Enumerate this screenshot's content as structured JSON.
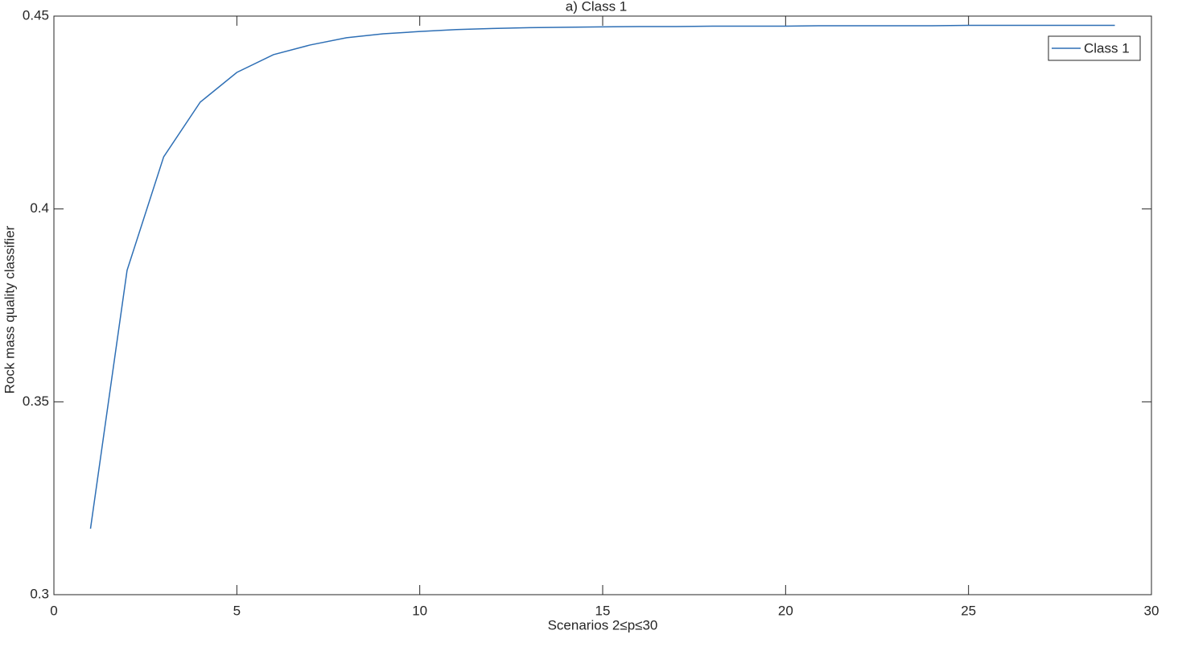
{
  "chart_data": {
    "type": "line",
    "title": "a) Class 1",
    "x_label": "Scenarios 2≤p≤30",
    "y_label": "Rock mass quality classifier",
    "x": [
      1,
      2,
      3,
      4,
      5,
      6,
      7,
      8,
      9,
      10,
      11,
      12,
      13,
      14,
      15,
      16,
      17,
      18,
      19,
      20,
      21,
      22,
      23,
      24,
      25,
      26,
      27,
      28,
      29
    ],
    "series": [
      {
        "name": "Class 1",
        "color": "#2e6fb5",
        "values": [
          0.3171,
          0.3841,
          0.4135,
          0.4277,
          0.4354,
          0.44,
          0.4425,
          0.4444,
          0.4454,
          0.446,
          0.4465,
          0.4468,
          0.447,
          0.4471,
          0.4472,
          0.4473,
          0.4473,
          0.4474,
          0.4474,
          0.4474,
          0.4475,
          0.4475,
          0.4475,
          0.4475,
          0.4476,
          0.4476,
          0.4476,
          0.4476,
          0.4476
        ]
      }
    ],
    "xlim": [
      0,
      30
    ],
    "xticks": [
      0,
      5,
      10,
      15,
      20,
      25,
      30
    ],
    "ylim": [
      0.3,
      0.45
    ],
    "yticks": [
      0.3,
      0.35,
      0.4,
      0.45
    ],
    "legend": "northeast",
    "grid": false
  }
}
